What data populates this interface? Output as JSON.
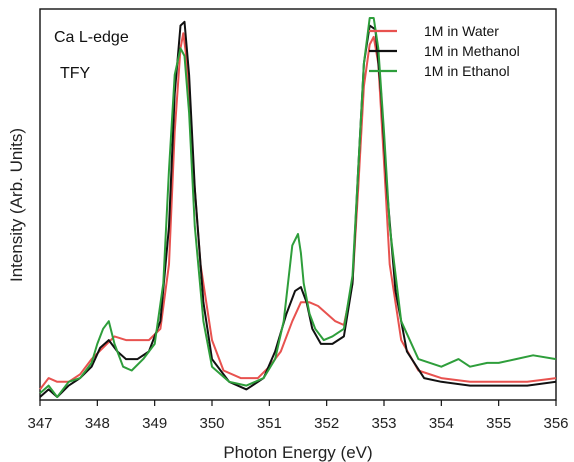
{
  "chart_data": {
    "type": "line",
    "xlabel": "Photon Energy (eV)",
    "ylabel": "Intensity (Arb. Units)",
    "xlim": [
      347,
      356
    ],
    "ylim": [
      0,
      1
    ],
    "x_ticks": [
      "347",
      "348",
      "349",
      "350",
      "351",
      "352",
      "353",
      "354",
      "355",
      "356"
    ],
    "y_ticks_shown": false,
    "grid": false,
    "legend_position": "top-right",
    "annotations": [
      "Ca L-edge",
      "TFY"
    ],
    "series": [
      {
        "name": "1M in Water",
        "color": "#e8524f",
        "x": [
          347.0,
          347.15,
          347.3,
          347.5,
          347.7,
          347.9,
          348.1,
          348.3,
          348.5,
          348.7,
          348.9,
          349.1,
          349.25,
          349.35,
          349.45,
          349.5,
          349.55,
          349.65,
          349.8,
          350.0,
          350.2,
          350.5,
          350.8,
          351.0,
          351.2,
          351.4,
          351.55,
          351.7,
          351.85,
          352.0,
          352.15,
          352.3,
          352.45,
          352.55,
          352.65,
          352.75,
          352.82,
          352.9,
          353.0,
          353.1,
          353.3,
          353.6,
          354.0,
          354.5,
          355.0,
          355.5,
          356.0
        ],
        "y": [
          0.02,
          0.05,
          0.04,
          0.04,
          0.06,
          0.1,
          0.13,
          0.16,
          0.15,
          0.15,
          0.15,
          0.18,
          0.35,
          0.7,
          0.92,
          0.96,
          0.9,
          0.65,
          0.35,
          0.15,
          0.07,
          0.05,
          0.05,
          0.08,
          0.12,
          0.2,
          0.25,
          0.25,
          0.24,
          0.22,
          0.2,
          0.19,
          0.3,
          0.55,
          0.82,
          0.93,
          0.95,
          0.88,
          0.62,
          0.35,
          0.15,
          0.07,
          0.05,
          0.04,
          0.04,
          0.04,
          0.05
        ]
      },
      {
        "name": "1M in Methanol",
        "color": "#111111",
        "x": [
          347.0,
          347.15,
          347.3,
          347.5,
          347.7,
          347.9,
          348.05,
          348.2,
          348.35,
          348.5,
          348.7,
          348.9,
          349.1,
          349.25,
          349.35,
          349.45,
          349.52,
          349.6,
          349.7,
          349.85,
          350.0,
          350.3,
          350.6,
          350.9,
          351.1,
          351.3,
          351.45,
          351.55,
          351.65,
          351.75,
          351.9,
          352.1,
          352.3,
          352.45,
          352.55,
          352.65,
          352.75,
          352.85,
          352.95,
          353.05,
          353.2,
          353.4,
          353.7,
          354.0,
          354.5,
          355.0,
          355.5,
          356.0
        ],
        "y": [
          0.0,
          0.02,
          0.0,
          0.03,
          0.05,
          0.08,
          0.13,
          0.15,
          0.12,
          0.1,
          0.1,
          0.12,
          0.2,
          0.45,
          0.8,
          0.98,
          0.99,
          0.85,
          0.55,
          0.25,
          0.1,
          0.04,
          0.02,
          0.05,
          0.12,
          0.22,
          0.28,
          0.29,
          0.25,
          0.18,
          0.14,
          0.14,
          0.16,
          0.3,
          0.6,
          0.88,
          0.98,
          0.97,
          0.8,
          0.55,
          0.28,
          0.12,
          0.05,
          0.04,
          0.03,
          0.03,
          0.03,
          0.04
        ]
      },
      {
        "name": "1M in Ethanol",
        "color": "#2e9e3b",
        "x": [
          347.0,
          347.15,
          347.3,
          347.5,
          347.7,
          347.9,
          348.0,
          348.1,
          348.2,
          348.3,
          348.45,
          348.6,
          348.8,
          349.0,
          349.15,
          349.25,
          349.35,
          349.45,
          349.52,
          349.6,
          349.7,
          349.85,
          350.0,
          350.3,
          350.6,
          350.9,
          351.1,
          351.25,
          351.4,
          351.5,
          351.55,
          351.6,
          351.7,
          351.8,
          351.95,
          352.1,
          352.3,
          352.45,
          352.55,
          352.65,
          352.75,
          352.82,
          352.9,
          353.0,
          353.1,
          353.3,
          353.6,
          354.0,
          354.3,
          354.5,
          354.8,
          355.0,
          355.3,
          355.6,
          356.0
        ],
        "y": [
          0.01,
          0.03,
          0.0,
          0.04,
          0.05,
          0.09,
          0.14,
          0.18,
          0.2,
          0.14,
          0.08,
          0.07,
          0.1,
          0.14,
          0.3,
          0.6,
          0.85,
          0.92,
          0.9,
          0.75,
          0.45,
          0.2,
          0.08,
          0.04,
          0.03,
          0.05,
          0.1,
          0.2,
          0.4,
          0.43,
          0.38,
          0.3,
          0.22,
          0.18,
          0.15,
          0.16,
          0.18,
          0.32,
          0.6,
          0.88,
          1.0,
          1.0,
          0.92,
          0.7,
          0.45,
          0.2,
          0.1,
          0.08,
          0.1,
          0.08,
          0.09,
          0.09,
          0.1,
          0.11,
          0.1
        ]
      }
    ]
  }
}
